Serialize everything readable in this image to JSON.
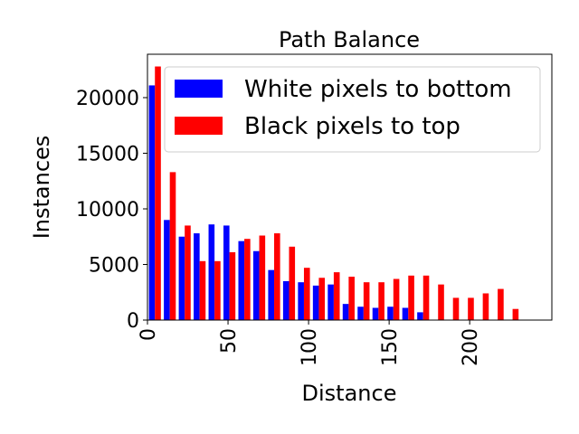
{
  "chart_data": {
    "type": "histogram",
    "title": "Path Balance",
    "xlabel": "Distance",
    "ylabel": "Instances",
    "bins": [
      0,
      9.25,
      18.5,
      27.75,
      37,
      46.25,
      55.5,
      64.75,
      74,
      83.25,
      92.5,
      101.75,
      111,
      120.25,
      129.5,
      138.75,
      148,
      157.25,
      166.5,
      175.75,
      185,
      194.25,
      203.5,
      212.75,
      222,
      231.25
    ],
    "series": [
      {
        "name": "White pixels to bottom",
        "color": "#0000ff",
        "values": [
          21100,
          9000,
          7500,
          7800,
          8600,
          8500,
          7100,
          6200,
          4500,
          3500,
          3400,
          3100,
          3200,
          1450,
          1200,
          1100,
          1200,
          1100,
          700,
          0,
          0,
          0,
          0,
          0,
          0
        ]
      },
      {
        "name": "Black pixels to top",
        "color": "#ff0000",
        "values": [
          22800,
          13300,
          8500,
          5300,
          5300,
          6100,
          7300,
          7600,
          7800,
          6600,
          4700,
          3800,
          4300,
          3900,
          3400,
          3400,
          3700,
          4000,
          4000,
          3200,
          2000,
          2000,
          2400,
          2800,
          1000
        ]
      }
    ],
    "xlim": [
      0,
      251
    ],
    "ylim": [
      0,
      23900
    ],
    "xticks": [
      0,
      50,
      100,
      150,
      200
    ],
    "yticks": [
      0,
      5000,
      10000,
      15000,
      20000
    ],
    "legend": "upper right"
  }
}
